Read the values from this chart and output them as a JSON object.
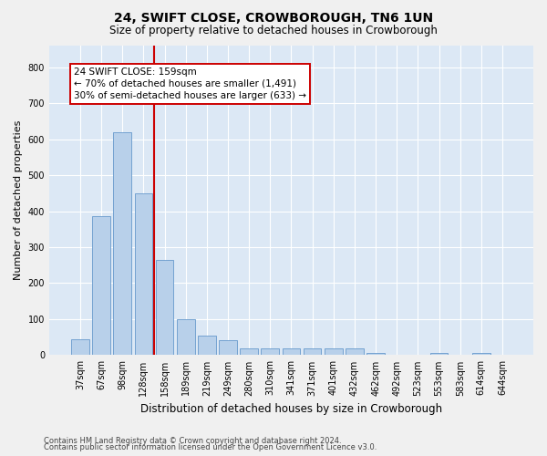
{
  "title": "24, SWIFT CLOSE, CROWBOROUGH, TN6 1UN",
  "subtitle": "Size of property relative to detached houses in Crowborough",
  "xlabel": "Distribution of detached houses by size in Crowborough",
  "ylabel": "Number of detached properties",
  "footnote1": "Contains HM Land Registry data © Crown copyright and database right 2024.",
  "footnote2": "Contains public sector information licensed under the Open Government Licence v3.0.",
  "bar_color": "#b8d0ea",
  "bar_edge_color": "#6699cc",
  "background_color": "#dce8f5",
  "grid_color": "#ffffff",
  "vline_color": "#cc0000",
  "annotation_text": "24 SWIFT CLOSE: 159sqm\n← 70% of detached houses are smaller (1,491)\n30% of semi-detached houses are larger (633) →",
  "annotation_box_edgecolor": "#cc0000",
  "categories": [
    "37sqm",
    "67sqm",
    "98sqm",
    "128sqm",
    "158sqm",
    "189sqm",
    "219sqm",
    "249sqm",
    "280sqm",
    "310sqm",
    "341sqm",
    "371sqm",
    "401sqm",
    "432sqm",
    "462sqm",
    "492sqm",
    "523sqm",
    "553sqm",
    "583sqm",
    "614sqm",
    "644sqm"
  ],
  "values": [
    45,
    385,
    620,
    450,
    265,
    100,
    55,
    42,
    20,
    20,
    20,
    20,
    20,
    20,
    7,
    0,
    0,
    7,
    0,
    7,
    0
  ],
  "ylim": [
    0,
    860
  ],
  "yticks": [
    0,
    100,
    200,
    300,
    400,
    500,
    600,
    700,
    800
  ],
  "vline_bar_index": 4,
  "title_fontsize": 10,
  "subtitle_fontsize": 8.5,
  "ylabel_fontsize": 8,
  "xlabel_fontsize": 8.5,
  "tick_fontsize": 7,
  "annot_fontsize": 7.5,
  "footnote_fontsize": 6
}
